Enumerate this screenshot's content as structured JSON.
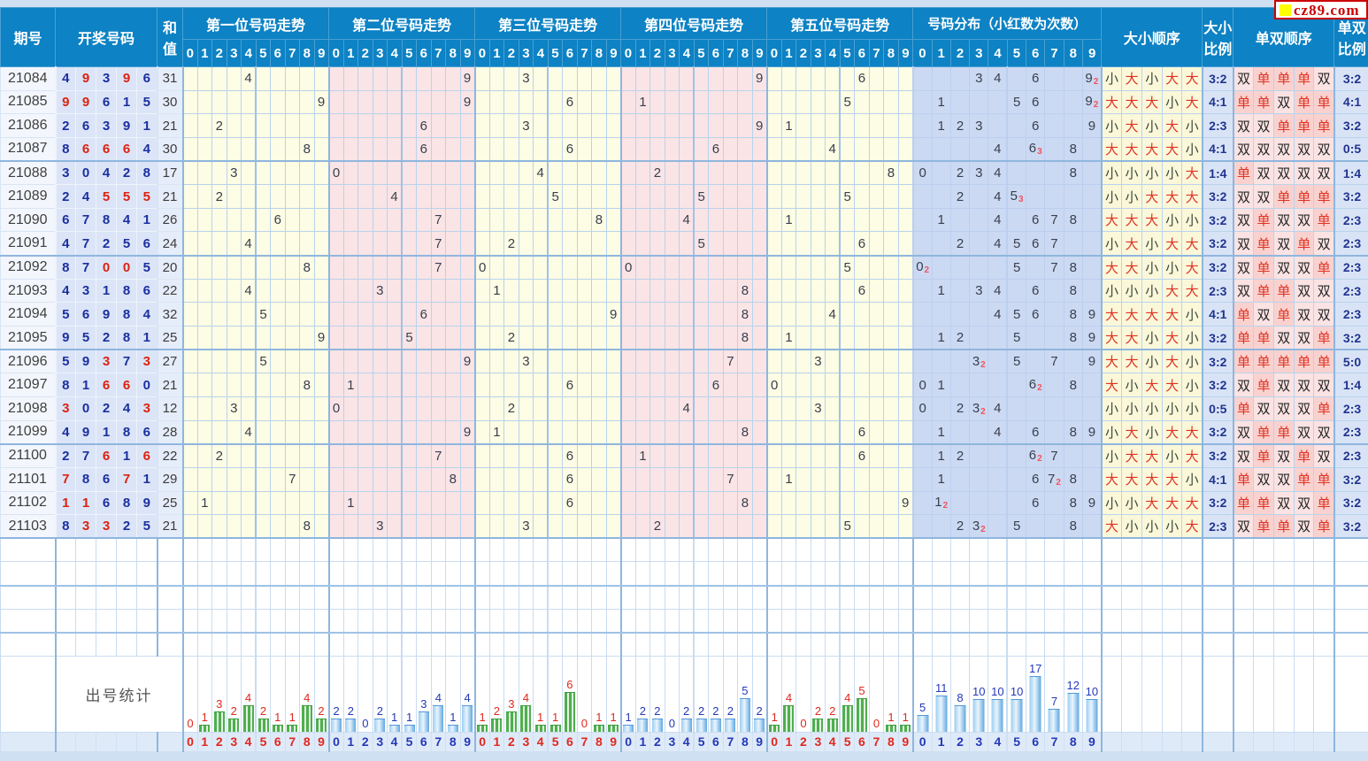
{
  "logo": {
    "text": "cz89.com",
    "square_color": "#ffff00",
    "text_color": "#cc0000"
  },
  "headers": {
    "period": "期号",
    "numbers": "开奖号码",
    "sum_line1": "和",
    "sum_line2": "值",
    "distribution": "号码分布（小红数为次数）",
    "big_small_order": "大小顺序",
    "big_small_ratio_line1": "大小",
    "big_small_ratio_line2": "比例",
    "odd_even_order": "单双顺序",
    "odd_even_ratio_line1": "单双",
    "odd_even_ratio_line2": "比例"
  },
  "sections": [
    {
      "title": "第一位号码走势"
    },
    {
      "title": "第二位号码走势"
    },
    {
      "title": "第三位号码走势"
    },
    {
      "title": "第四位号码走势"
    },
    {
      "title": "第五位号码走势"
    }
  ],
  "digits": [
    "0",
    "1",
    "2",
    "3",
    "4",
    "5",
    "6",
    "7",
    "8",
    "9"
  ],
  "labels": {
    "big": "大",
    "small": "小",
    "odd": "单",
    "even": "双"
  },
  "rows": [
    {
      "period": "21084",
      "nums": [
        4,
        9,
        3,
        9,
        6
      ],
      "sum": 31,
      "big_small": [
        "小",
        "大",
        "小",
        "大",
        "大"
      ],
      "bs_ratio": "3:2",
      "odd_even": [
        "双",
        "单",
        "单",
        "单",
        "双"
      ],
      "oe_ratio": "3:2"
    },
    {
      "period": "21085",
      "nums": [
        9,
        9,
        6,
        1,
        5
      ],
      "sum": 30,
      "big_small": [
        "大",
        "大",
        "大",
        "小",
        "大"
      ],
      "bs_ratio": "4:1",
      "odd_even": [
        "单",
        "单",
        "双",
        "单",
        "单"
      ],
      "oe_ratio": "4:1"
    },
    {
      "period": "21086",
      "nums": [
        2,
        6,
        3,
        9,
        1
      ],
      "sum": 21,
      "big_small": [
        "小",
        "大",
        "小",
        "大",
        "小"
      ],
      "bs_ratio": "2:3",
      "odd_even": [
        "双",
        "双",
        "单",
        "单",
        "单"
      ],
      "oe_ratio": "3:2"
    },
    {
      "period": "21087",
      "nums": [
        8,
        6,
        6,
        6,
        4
      ],
      "sum": 30,
      "big_small": [
        "大",
        "大",
        "大",
        "大",
        "小"
      ],
      "bs_ratio": "4:1",
      "odd_even": [
        "双",
        "双",
        "双",
        "双",
        "双"
      ],
      "oe_ratio": "0:5"
    },
    {
      "period": "21088",
      "nums": [
        3,
        0,
        4,
        2,
        8
      ],
      "sum": 17,
      "big_small": [
        "小",
        "小",
        "小",
        "小",
        "大"
      ],
      "bs_ratio": "1:4",
      "odd_even": [
        "单",
        "双",
        "双",
        "双",
        "双"
      ],
      "oe_ratio": "1:4"
    },
    {
      "period": "21089",
      "nums": [
        2,
        4,
        5,
        5,
        5
      ],
      "sum": 21,
      "big_small": [
        "小",
        "小",
        "大",
        "大",
        "大"
      ],
      "bs_ratio": "3:2",
      "odd_even": [
        "双",
        "双",
        "单",
        "单",
        "单"
      ],
      "oe_ratio": "3:2"
    },
    {
      "period": "21090",
      "nums": [
        6,
        7,
        8,
        4,
        1
      ],
      "sum": 26,
      "big_small": [
        "大",
        "大",
        "大",
        "小",
        "小"
      ],
      "bs_ratio": "3:2",
      "odd_even": [
        "双",
        "单",
        "双",
        "双",
        "单"
      ],
      "oe_ratio": "2:3"
    },
    {
      "period": "21091",
      "nums": [
        4,
        7,
        2,
        5,
        6
      ],
      "sum": 24,
      "big_small": [
        "小",
        "大",
        "小",
        "大",
        "大"
      ],
      "bs_ratio": "3:2",
      "odd_even": [
        "双",
        "单",
        "双",
        "单",
        "双"
      ],
      "oe_ratio": "2:3"
    },
    {
      "period": "21092",
      "nums": [
        8,
        7,
        0,
        0,
        5
      ],
      "sum": 20,
      "big_small": [
        "大",
        "大",
        "小",
        "小",
        "大"
      ],
      "bs_ratio": "3:2",
      "odd_even": [
        "双",
        "单",
        "双",
        "双",
        "单"
      ],
      "oe_ratio": "2:3"
    },
    {
      "period": "21093",
      "nums": [
        4,
        3,
        1,
        8,
        6
      ],
      "sum": 22,
      "big_small": [
        "小",
        "小",
        "小",
        "大",
        "大"
      ],
      "bs_ratio": "2:3",
      "odd_even": [
        "双",
        "单",
        "单",
        "双",
        "双"
      ],
      "oe_ratio": "2:3"
    },
    {
      "period": "21094",
      "nums": [
        5,
        6,
        9,
        8,
        4
      ],
      "sum": 32,
      "big_small": [
        "大",
        "大",
        "大",
        "大",
        "小"
      ],
      "bs_ratio": "4:1",
      "odd_even": [
        "单",
        "双",
        "单",
        "双",
        "双"
      ],
      "oe_ratio": "2:3"
    },
    {
      "period": "21095",
      "nums": [
        9,
        5,
        2,
        8,
        1
      ],
      "sum": 25,
      "big_small": [
        "大",
        "大",
        "小",
        "大",
        "小"
      ],
      "bs_ratio": "3:2",
      "odd_even": [
        "单",
        "单",
        "双",
        "双",
        "单"
      ],
      "oe_ratio": "3:2"
    },
    {
      "period": "21096",
      "nums": [
        5,
        9,
        3,
        7,
        3
      ],
      "sum": 27,
      "big_small": [
        "大",
        "大",
        "小",
        "大",
        "小"
      ],
      "bs_ratio": "3:2",
      "odd_even": [
        "单",
        "单",
        "单",
        "单",
        "单"
      ],
      "oe_ratio": "5:0"
    },
    {
      "period": "21097",
      "nums": [
        8,
        1,
        6,
        6,
        0
      ],
      "sum": 21,
      "big_small": [
        "大",
        "小",
        "大",
        "大",
        "小"
      ],
      "bs_ratio": "3:2",
      "odd_even": [
        "双",
        "单",
        "双",
        "双",
        "双"
      ],
      "oe_ratio": "1:4"
    },
    {
      "period": "21098",
      "nums": [
        3,
        0,
        2,
        4,
        3
      ],
      "sum": 12,
      "big_small": [
        "小",
        "小",
        "小",
        "小",
        "小"
      ],
      "bs_ratio": "0:5",
      "odd_even": [
        "单",
        "双",
        "双",
        "双",
        "单"
      ],
      "oe_ratio": "2:3"
    },
    {
      "period": "21099",
      "nums": [
        4,
        9,
        1,
        8,
        6
      ],
      "sum": 28,
      "big_small": [
        "小",
        "大",
        "小",
        "大",
        "大"
      ],
      "bs_ratio": "3:2",
      "odd_even": [
        "双",
        "单",
        "单",
        "双",
        "双"
      ],
      "oe_ratio": "2:3"
    },
    {
      "period": "21100",
      "nums": [
        2,
        7,
        6,
        1,
        6
      ],
      "sum": 22,
      "big_small": [
        "小",
        "大",
        "大",
        "小",
        "大"
      ],
      "bs_ratio": "3:2",
      "odd_even": [
        "双",
        "单",
        "双",
        "单",
        "双"
      ],
      "oe_ratio": "2:3"
    },
    {
      "period": "21101",
      "nums": [
        7,
        8,
        6,
        7,
        1
      ],
      "sum": 29,
      "big_small": [
        "大",
        "大",
        "大",
        "大",
        "小"
      ],
      "bs_ratio": "4:1",
      "odd_even": [
        "单",
        "双",
        "双",
        "单",
        "单"
      ],
      "oe_ratio": "3:2"
    },
    {
      "period": "21102",
      "nums": [
        1,
        1,
        6,
        8,
        9
      ],
      "sum": 25,
      "big_small": [
        "小",
        "小",
        "大",
        "大",
        "大"
      ],
      "bs_ratio": "3:2",
      "odd_even": [
        "单",
        "单",
        "双",
        "双",
        "单"
      ],
      "oe_ratio": "3:2"
    },
    {
      "period": "21103",
      "nums": [
        8,
        3,
        3,
        2,
        5
      ],
      "sum": 21,
      "big_small": [
        "大",
        "小",
        "小",
        "小",
        "大"
      ],
      "bs_ratio": "2:3",
      "odd_even": [
        "双",
        "单",
        "单",
        "双",
        "单"
      ],
      "oe_ratio": "3:2"
    }
  ],
  "empty_row_count": 5,
  "stats": {
    "label": "出号统计",
    "position_counts": [
      [
        0,
        1,
        3,
        2,
        4,
        2,
        1,
        1,
        4,
        2
      ],
      [
        2,
        2,
        0,
        2,
        1,
        1,
        3,
        4,
        1,
        4
      ],
      [
        1,
        2,
        3,
        4,
        1,
        1,
        6,
        0,
        1,
        1
      ],
      [
        1,
        2,
        2,
        0,
        2,
        2,
        2,
        2,
        5,
        2
      ],
      [
        1,
        4,
        0,
        2,
        2,
        4,
        5,
        0,
        1,
        1
      ]
    ],
    "distribution_counts": [
      5,
      11,
      8,
      10,
      10,
      10,
      17,
      7,
      12,
      10
    ]
  },
  "colors": {
    "header_bg": "#0d82c4",
    "trend_yellow": "#fdfce4",
    "trend_pink": "#fae4e6",
    "distribution_bg": "#ccd9f2",
    "digit_blue": "#1b2fa0",
    "digit_red": "#dd2211",
    "big_odd_red": "#e03322",
    "green_bar": "#4fae4f",
    "blue_bar": "#60a8e0"
  }
}
